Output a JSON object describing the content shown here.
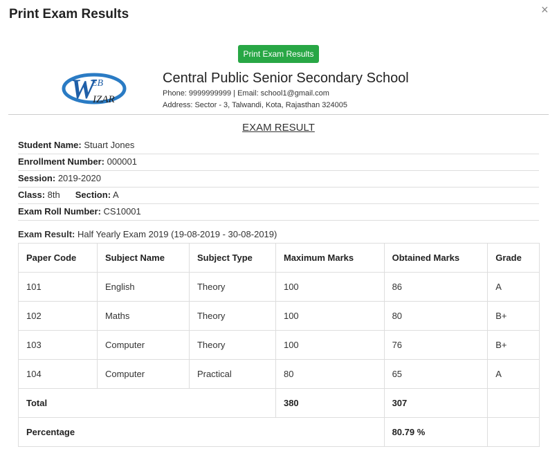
{
  "modal": {
    "title": "Print Exam Results",
    "close": "×"
  },
  "print_button": "Print Exam Results",
  "logo": {
    "letter": "W",
    "top": "EB",
    "bottom": "IZAR"
  },
  "school": {
    "name": "Central Public Senior Secondary School",
    "contact": "Phone: 9999999999 | Email: school1@gmail.com",
    "address": "Address: Sector - 3, Talwandi, Kota, Rajasthan 324005"
  },
  "heading": "EXAM RESULT",
  "fields": [
    [
      {
        "label": "Student Name:",
        "value": "Stuart Jones"
      }
    ],
    [
      {
        "label": "Enrollment Number:",
        "value": "000001"
      }
    ],
    [
      {
        "label": "Session:",
        "value": "2019-2020"
      }
    ],
    [
      {
        "label": "Class:",
        "value": "8th"
      },
      {
        "label": "Section:",
        "value": "A"
      }
    ],
    [
      {
        "label": "Exam Roll Number:",
        "value": "CS10001"
      }
    ]
  ],
  "exam": {
    "label": "Exam Result:",
    "value": "Half Yearly Exam 2019 (19-08-2019 - 30-08-2019)"
  },
  "table": {
    "header": [
      "Paper Code",
      "Subject Name",
      "Subject Type",
      "Maximum Marks",
      "Obtained Marks",
      "Grade"
    ],
    "rows": [
      [
        "101",
        "English",
        "Theory",
        "100",
        "86",
        "A"
      ],
      [
        "102",
        "Maths",
        "Theory",
        "100",
        "80",
        "B+"
      ],
      [
        "103",
        "Computer",
        "Theory",
        "100",
        "76",
        "B+"
      ],
      [
        "104",
        "Computer",
        "Practical",
        "80",
        "65",
        "A"
      ]
    ],
    "total": {
      "label": "Total",
      "maximum": "380",
      "obtained": "307"
    },
    "percentage": {
      "label": "Percentage",
      "value": "80.79 %"
    }
  }
}
